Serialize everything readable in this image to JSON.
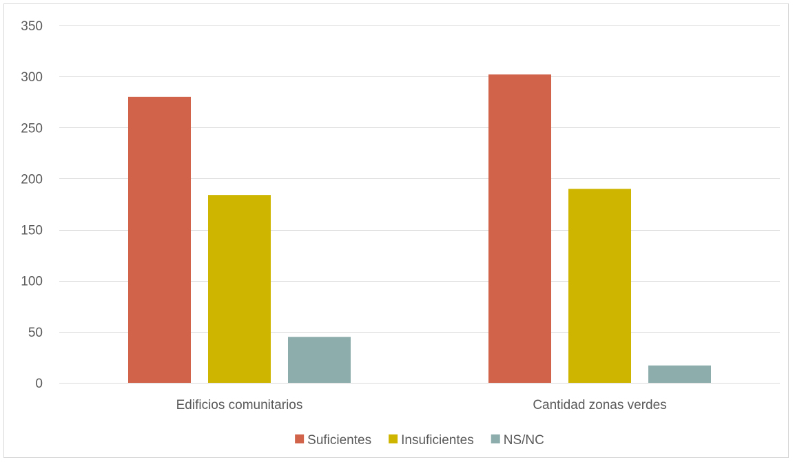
{
  "chart_data": {
    "type": "bar",
    "title": "",
    "xlabel": "",
    "ylabel": "",
    "ylim": [
      0,
      350
    ],
    "yticks": [
      0,
      50,
      100,
      150,
      200,
      250,
      300,
      350
    ],
    "grid": true,
    "legend_position": "bottom",
    "categories": [
      "Edificios comunitarios",
      "Cantidad zonas verdes"
    ],
    "series": [
      {
        "name": "Suficientes",
        "color": "#D0634A",
        "values": [
          280,
          302
        ]
      },
      {
        "name": "Insuficientes",
        "color": "#CDB500",
        "values": [
          184,
          190
        ]
      },
      {
        "name": "NS/NC",
        "color": "#8DADAD",
        "values": [
          45,
          17
        ]
      }
    ]
  }
}
